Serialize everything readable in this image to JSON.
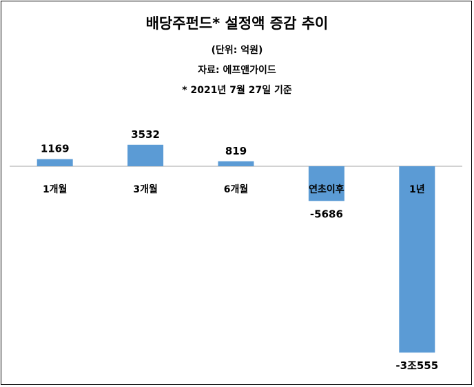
{
  "chart_data": {
    "type": "bar",
    "title": "배당주펀드* 설정액 증감 추이",
    "subtitle": "(단위: 억원)",
    "source": "자료: 에프앤가이드",
    "note": "* 2021년 7월 27일 기준",
    "categories": [
      "1개월",
      "3개월",
      "6개월",
      "연초이후",
      "1년"
    ],
    "values": [
      1169,
      3532,
      819,
      -5686,
      -30555
    ],
    "value_labels": [
      "1169",
      "3532",
      "819",
      "-5686",
      "-3조555"
    ],
    "bar_color": "#5b9bd5",
    "axis_color": "#a6a6a6",
    "grid": false,
    "legend": "none"
  }
}
